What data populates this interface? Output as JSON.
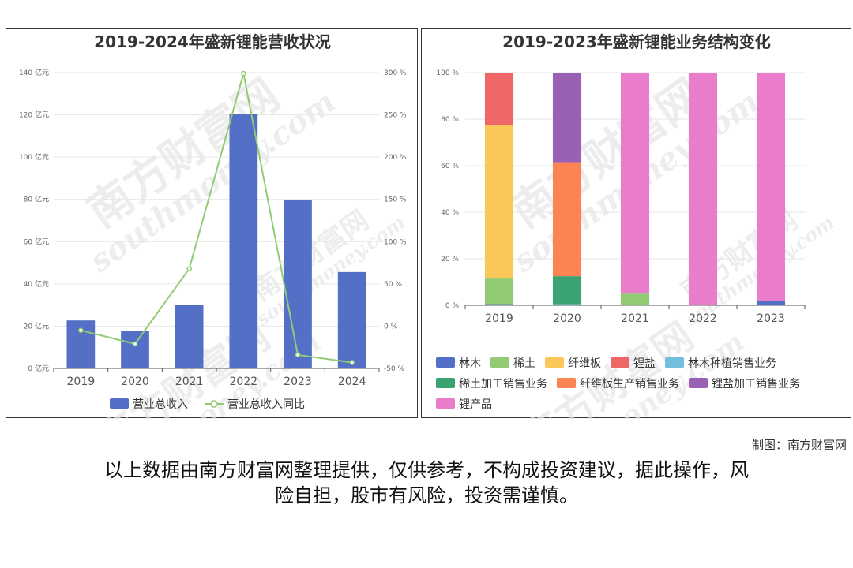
{
  "chart_data": [
    {
      "type": "bar+line",
      "title": "2019-2024年盛新锂能营收状况",
      "categories": [
        "2019",
        "2020",
        "2021",
        "2022",
        "2023",
        "2024"
      ],
      "y_left": {
        "ticks": [
          "0 亿元",
          "20 亿元",
          "40 亿元",
          "60 亿元",
          "80 亿元",
          "100 亿元",
          "120 亿元",
          "140 亿元"
        ],
        "range": [
          0,
          140
        ]
      },
      "y_right": {
        "ticks": [
          "-50 %",
          "0 %",
          "50 %",
          "100 %",
          "150 %",
          "200 %",
          "250 %",
          "300 %"
        ],
        "range": [
          -50,
          300
        ]
      },
      "series": [
        {
          "name": "营业总收入",
          "type": "bar",
          "axis": "left",
          "color": "#5470c6",
          "values": [
            22.7,
            17.9,
            30.1,
            120.3,
            79.6,
            45.6
          ]
        },
        {
          "name": "营业总收入同比",
          "type": "line",
          "axis": "right",
          "color": "#91cc75",
          "values": [
            -5,
            -21,
            68,
            299,
            -34,
            -43
          ]
        }
      ],
      "legend_position": "bottom",
      "grid": true
    },
    {
      "type": "stacked-bar-100",
      "title": "2019-2023年盛新锂能业务结构变化",
      "categories": [
        "2019",
        "2020",
        "2021",
        "2022",
        "2023"
      ],
      "y": {
        "ticks": [
          "0 %",
          "20 %",
          "40 %",
          "60 %",
          "80 %",
          "100 %"
        ],
        "range": [
          0,
          100
        ]
      },
      "series": [
        {
          "name": "林木",
          "color": "#5470c6",
          "values": [
            0.5,
            0,
            0,
            0,
            2
          ]
        },
        {
          "name": "稀土",
          "color": "#91cc75",
          "values": [
            11,
            0,
            5,
            0,
            0
          ]
        },
        {
          "name": "纤维板",
          "color": "#fac858",
          "values": [
            66,
            0,
            0,
            0,
            0
          ]
        },
        {
          "name": "锂盐",
          "color": "#ee6666",
          "values": [
            22.5,
            0,
            0,
            0,
            0
          ]
        },
        {
          "name": "林木种植销售业务",
          "color": "#73c0de",
          "values": [
            0,
            0.5,
            0,
            0,
            0
          ]
        },
        {
          "name": "稀土加工销售业务",
          "color": "#3ba272",
          "values": [
            0,
            12,
            0,
            0,
            0
          ]
        },
        {
          "name": "纤维板生产销售业务",
          "color": "#fc8452",
          "values": [
            0,
            49,
            0,
            0,
            0
          ]
        },
        {
          "name": "锂盐加工销售业务",
          "color": "#9a60b4",
          "values": [
            0,
            38.5,
            0,
            0,
            0
          ]
        },
        {
          "name": "锂产品",
          "color": "#ea7ccc",
          "values": [
            0,
            0,
            95,
            100,
            98
          ]
        }
      ],
      "legend_position": "bottom",
      "grid": true
    }
  ],
  "watermark": {
    "cn": "南方财富网",
    "en": "southmoney.com"
  },
  "credit": "制图：南方财富网",
  "disclaimer_lines": [
    "以上数据由南方财富网整理提供，仅供参考，不构成投资建议，据此操作，风",
    "险自担，股市有风险，投资需谨慎。"
  ]
}
